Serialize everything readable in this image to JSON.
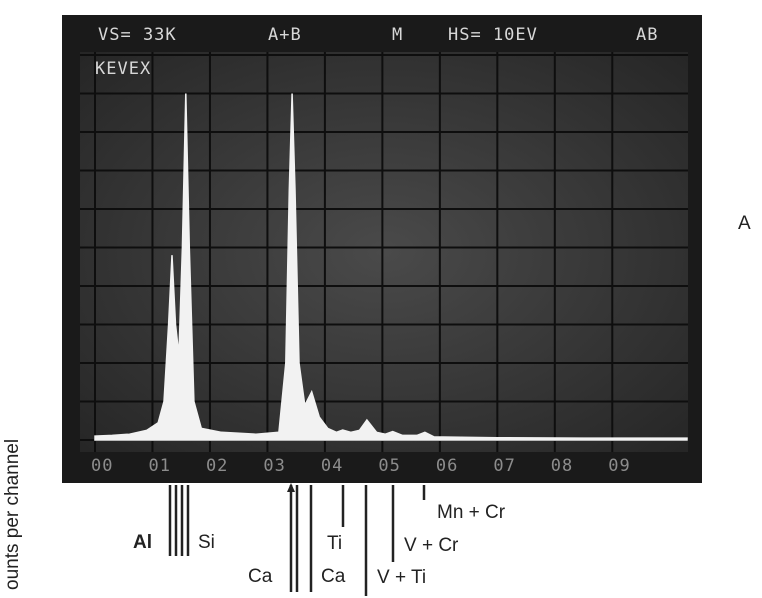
{
  "chart_data": {
    "type": "area",
    "screen_header": [
      "VS= 33K",
      "A+B",
      "M",
      "HS= 10EV",
      "AB"
    ],
    "brand": "KEVEX",
    "side_label": "A",
    "y_label": "ounts per channel",
    "peak_labels": [
      "Al",
      "Si",
      "Ca",
      "Ca",
      "Ti",
      "V + Ti",
      "V + Cr",
      "Mn + Cr"
    ],
    "color": "#f2f2f2",
    "xlim": [
      0,
      10.3
    ],
    "ylim": [
      0,
      10
    ],
    "xticks": [
      {
        "value": 0,
        "label": "00"
      },
      {
        "value": 1,
        "label": "01"
      },
      {
        "value": 2,
        "label": "02"
      },
      {
        "value": 3,
        "label": "03"
      },
      {
        "value": 4,
        "label": "04"
      },
      {
        "value": 5,
        "label": "05"
      },
      {
        "value": 6,
        "label": "06"
      },
      {
        "value": 7,
        "label": "07"
      },
      {
        "value": 8,
        "label": "08"
      },
      {
        "value": 9,
        "label": "09"
      }
    ],
    "x": [
      0.0,
      0.3,
      0.6,
      0.9,
      1.1,
      1.2,
      1.28,
      1.34,
      1.4,
      1.46,
      1.52,
      1.58,
      1.64,
      1.72,
      1.85,
      2.2,
      2.8,
      3.2,
      3.32,
      3.38,
      3.43,
      3.48,
      3.55,
      3.65,
      3.77,
      3.9,
      4.05,
      4.2,
      4.31,
      4.45,
      4.6,
      4.73,
      4.9,
      5.05,
      5.18,
      5.35,
      5.6,
      5.74,
      5.9,
      7,
      8.5,
      10.3
    ],
    "values": [
      0.1,
      0.12,
      0.15,
      0.25,
      0.45,
      1.0,
      3.0,
      4.8,
      3.0,
      2.2,
      5.0,
      9.0,
      5.0,
      1.0,
      0.3,
      0.2,
      0.15,
      0.2,
      2.0,
      6.5,
      9.0,
      6.5,
      2.0,
      0.9,
      1.25,
      0.6,
      0.3,
      0.2,
      0.26,
      0.2,
      0.25,
      0.52,
      0.2,
      0.15,
      0.22,
      0.12,
      0.12,
      0.2,
      0.08,
      0.06,
      0.05,
      0.05
    ]
  }
}
